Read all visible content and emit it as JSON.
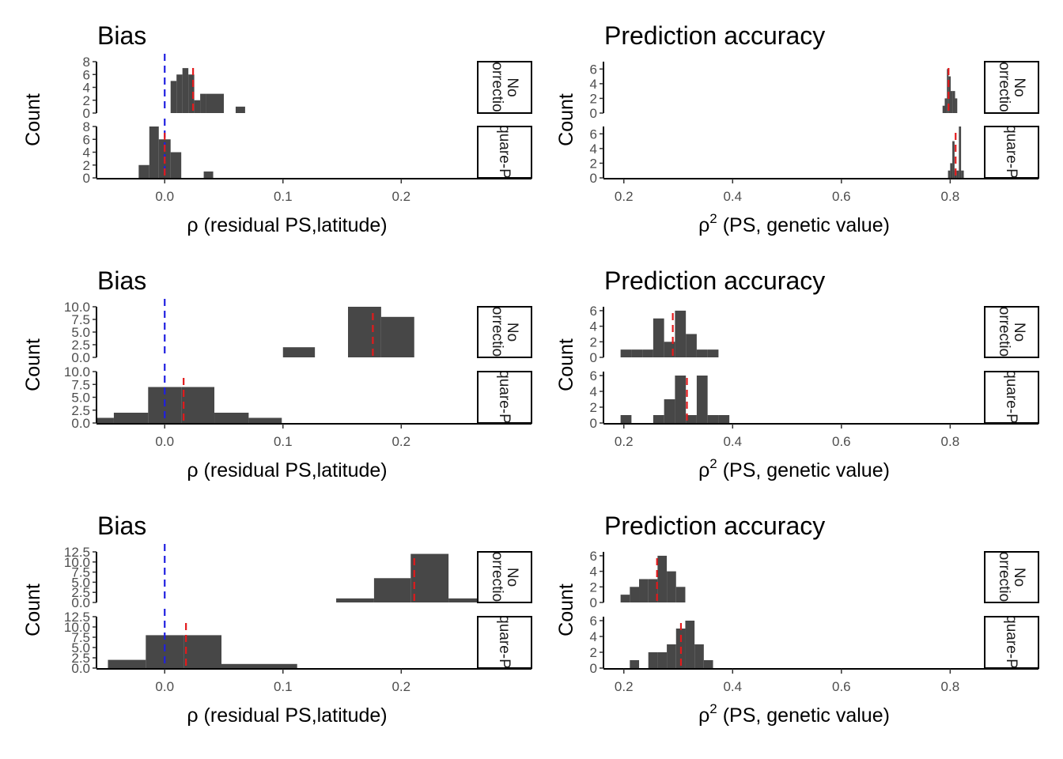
{
  "colors": {
    "bar": "#474747",
    "mean_line": "#e31a1c",
    "zero_line": "#1f1fe0",
    "strip_border": "#000000"
  },
  "chart_data": [
    {
      "type": "histogram",
      "row": 0,
      "col": 0,
      "title": "Bias",
      "ylabel": "Count",
      "xlabel_prefix": "ρ",
      "xlabel_sup": "",
      "xlabel_rest": " (residual PS,latitude)",
      "xlim": [
        -0.057,
        0.264
      ],
      "xticks": [
        0.0,
        0.1,
        0.2
      ],
      "xtick_labels": [
        "0.0",
        "0.1",
        "0.2"
      ],
      "zero_line": 0.0,
      "facets": [
        {
          "label": "No correction",
          "ylim": [
            0,
            8
          ],
          "yticks": [
            0,
            2,
            4,
            6,
            8
          ],
          "ytick_labels": [
            "0",
            "2",
            "4",
            "6",
            "8"
          ],
          "mean": 0.024,
          "bars": [
            [
              0.005,
              0.01,
              5
            ],
            [
              0.01,
              0.015,
              6
            ],
            [
              0.015,
              0.02,
              7
            ],
            [
              0.02,
              0.025,
              6
            ],
            [
              0.025,
              0.03,
              2
            ],
            [
              0.03,
              0.035,
              3
            ],
            [
              0.035,
              0.05,
              3
            ],
            [
              0.06,
              0.068,
              1
            ]
          ]
        },
        {
          "label": "Square-PC",
          "ylim": [
            0,
            8
          ],
          "yticks": [
            0,
            2,
            4,
            6,
            8
          ],
          "ytick_labels": [
            "0",
            "2",
            "4",
            "6",
            "8"
          ],
          "mean": 0.0,
          "bars": [
            [
              -0.022,
              -0.013,
              2
            ],
            [
              -0.013,
              -0.005,
              8
            ],
            [
              -0.005,
              0.005,
              6
            ],
            [
              0.005,
              0.014,
              4
            ],
            [
              0.033,
              0.041,
              1
            ]
          ]
        }
      ]
    },
    {
      "type": "histogram",
      "row": 0,
      "col": 1,
      "title": "Prediction accuracy",
      "ylabel": "Count",
      "xlabel_prefix": "ρ",
      "xlabel_sup": "2",
      "xlabel_rest": " (PS, genetic value)",
      "xlim": [
        0.164,
        0.862
      ],
      "xticks": [
        0.2,
        0.4,
        0.6,
        0.8
      ],
      "xtick_labels": [
        "0.2",
        "0.4",
        "0.6",
        "0.8"
      ],
      "zero_line": null,
      "facets": [
        {
          "label": "No correction",
          "ylim": [
            0,
            7
          ],
          "yticks": [
            0,
            2,
            4,
            6
          ],
          "ytick_labels": [
            "0",
            "2",
            "4",
            "6"
          ],
          "mean": 0.797,
          "bars": [
            [
              0.786,
              0.79,
              1
            ],
            [
              0.79,
              0.794,
              2
            ],
            [
              0.794,
              0.797,
              6
            ],
            [
              0.797,
              0.801,
              5
            ],
            [
              0.801,
              0.805,
              3
            ],
            [
              0.805,
              0.809,
              3
            ],
            [
              0.809,
              0.813,
              2
            ]
          ]
        },
        {
          "label": "Square-PC",
          "ylim": [
            0,
            7
          ],
          "yticks": [
            0,
            2,
            4,
            6
          ],
          "ytick_labels": [
            "0",
            "2",
            "4",
            "6"
          ],
          "mean": 0.81,
          "bars": [
            [
              0.796,
              0.8,
              1
            ],
            [
              0.8,
              0.804,
              2
            ],
            [
              0.804,
              0.808,
              5
            ],
            [
              0.808,
              0.812,
              1
            ],
            [
              0.812,
              0.816,
              1
            ],
            [
              0.816,
              0.82,
              7
            ],
            [
              0.82,
              0.825,
              1
            ]
          ]
        }
      ]
    },
    {
      "type": "histogram",
      "row": 1,
      "col": 0,
      "title": "Bias",
      "ylabel": "Count",
      "xlabel_prefix": "ρ",
      "xlabel_sup": "",
      "xlabel_rest": " (residual PS,latitude)",
      "xlim": [
        -0.057,
        0.264
      ],
      "xticks": [
        0.0,
        0.1,
        0.2
      ],
      "xtick_labels": [
        "0.0",
        "0.1",
        "0.2"
      ],
      "zero_line": 0.0,
      "facets": [
        {
          "label": "No correction",
          "ylim": [
            0,
            10
          ],
          "yticks": [
            0,
            2.5,
            5,
            7.5,
            10
          ],
          "ytick_labels": [
            "0.0",
            "2.5",
            "5.0",
            "7.5",
            "10.0"
          ],
          "mean": 0.176,
          "bars": [
            [
              0.1,
              0.127,
              2
            ],
            [
              0.155,
              0.183,
              10
            ],
            [
              0.183,
              0.211,
              8
            ]
          ]
        },
        {
          "label": "Square-PC",
          "ylim": [
            0,
            10
          ],
          "yticks": [
            0,
            2.5,
            5,
            7.5,
            10
          ],
          "ytick_labels": [
            "0.0",
            "2.5",
            "5.0",
            "7.5",
            "10.0"
          ],
          "mean": 0.016,
          "bars": [
            [
              -0.057,
              -0.043,
              1
            ],
            [
              -0.043,
              -0.014,
              2
            ],
            [
              -0.014,
              0.014,
              7
            ],
            [
              0.014,
              0.042,
              7
            ],
            [
              0.042,
              0.071,
              2
            ],
            [
              0.071,
              0.099,
              1
            ]
          ]
        }
      ]
    },
    {
      "type": "histogram",
      "row": 1,
      "col": 1,
      "title": "Prediction accuracy",
      "ylabel": "Count",
      "xlabel_prefix": "ρ",
      "xlabel_sup": "2",
      "xlabel_rest": " (PS, genetic value)",
      "xlim": [
        0.164,
        0.862
      ],
      "xticks": [
        0.2,
        0.4,
        0.6,
        0.8
      ],
      "xtick_labels": [
        "0.2",
        "0.4",
        "0.6",
        "0.8"
      ],
      "zero_line": null,
      "facets": [
        {
          "label": "No correction",
          "ylim": [
            0,
            6.5
          ],
          "yticks": [
            0,
            2,
            4,
            6
          ],
          "ytick_labels": [
            "0",
            "2",
            "4",
            "6"
          ],
          "mean": 0.29,
          "bars": [
            [
              0.194,
              0.214,
              1
            ],
            [
              0.214,
              0.234,
              1
            ],
            [
              0.234,
              0.254,
              1
            ],
            [
              0.254,
              0.274,
              5
            ],
            [
              0.274,
              0.294,
              2
            ],
            [
              0.294,
              0.314,
              6
            ],
            [
              0.314,
              0.334,
              3
            ],
            [
              0.334,
              0.354,
              1
            ],
            [
              0.354,
              0.374,
              1
            ]
          ]
        },
        {
          "label": "Square-PC",
          "ylim": [
            0,
            6.5
          ],
          "yticks": [
            0,
            2,
            4,
            6
          ],
          "ytick_labels": [
            "0",
            "2",
            "4",
            "6"
          ],
          "mean": 0.316,
          "bars": [
            [
              0.194,
              0.214,
              1
            ],
            [
              0.254,
              0.274,
              1
            ],
            [
              0.274,
              0.294,
              3
            ],
            [
              0.294,
              0.314,
              6
            ],
            [
              0.314,
              0.334,
              1
            ],
            [
              0.334,
              0.354,
              6
            ],
            [
              0.354,
              0.374,
              1
            ],
            [
              0.374,
              0.394,
              1
            ]
          ]
        }
      ]
    },
    {
      "type": "histogram",
      "row": 2,
      "col": 0,
      "title": "Bias",
      "ylabel": "Count",
      "xlabel_prefix": "ρ",
      "xlabel_sup": "",
      "xlabel_rest": " (residual PS,latitude)",
      "xlim": [
        -0.057,
        0.264
      ],
      "xticks": [
        0.0,
        0.1,
        0.2
      ],
      "xtick_labels": [
        "0.0",
        "0.1",
        "0.2"
      ],
      "zero_line": 0.0,
      "facets": [
        {
          "label": "No correction",
          "ylim": [
            0,
            12.5
          ],
          "yticks": [
            0,
            2.5,
            5,
            7.5,
            10,
            12.5
          ],
          "ytick_labels": [
            "0.0",
            "2.5",
            "5.0",
            "7.5",
            "10.0",
            "12.5"
          ],
          "mean": 0.211,
          "bars": [
            [
              0.145,
              0.177,
              1
            ],
            [
              0.177,
              0.208,
              6
            ],
            [
              0.208,
              0.24,
              12
            ],
            [
              0.24,
              0.264,
              1
            ]
          ]
        },
        {
          "label": "Square-PC",
          "ylim": [
            0,
            12.5
          ],
          "yticks": [
            0,
            2.5,
            5,
            7.5,
            10,
            12.5
          ],
          "ytick_labels": [
            "0.0",
            "2.5",
            "5.0",
            "7.5",
            "10.0",
            "12.5"
          ],
          "mean": 0.018,
          "bars": [
            [
              -0.048,
              -0.016,
              2
            ],
            [
              -0.016,
              0.016,
              8
            ],
            [
              0.016,
              0.048,
              8
            ],
            [
              0.048,
              0.112,
              1
            ]
          ]
        }
      ]
    },
    {
      "type": "histogram",
      "row": 2,
      "col": 1,
      "title": "Prediction accuracy",
      "ylabel": "Count",
      "xlabel_prefix": "ρ",
      "xlabel_sup": "2",
      "xlabel_rest": " (PS, genetic value)",
      "xlim": [
        0.164,
        0.862
      ],
      "xticks": [
        0.2,
        0.4,
        0.6,
        0.8
      ],
      "xtick_labels": [
        "0.2",
        "0.4",
        "0.6",
        "0.8"
      ],
      "zero_line": null,
      "facets": [
        {
          "label": "No correction",
          "ylim": [
            0,
            6.5
          ],
          "yticks": [
            0,
            2,
            4,
            6
          ],
          "ytick_labels": [
            "0",
            "2",
            "4",
            "6"
          ],
          "mean": 0.261,
          "bars": [
            [
              0.194,
              0.211,
              1
            ],
            [
              0.211,
              0.228,
              2
            ],
            [
              0.228,
              0.245,
              3
            ],
            [
              0.245,
              0.262,
              3
            ],
            [
              0.262,
              0.279,
              6
            ],
            [
              0.279,
              0.296,
              4
            ],
            [
              0.296,
              0.313,
              2
            ]
          ]
        },
        {
          "label": "Square-PC",
          "ylim": [
            0,
            6.5
          ],
          "yticks": [
            0,
            2,
            4,
            6
          ],
          "ytick_labels": [
            "0",
            "2",
            "4",
            "6"
          ],
          "mean": 0.305,
          "bars": [
            [
              0.211,
              0.228,
              1
            ],
            [
              0.245,
              0.262,
              2
            ],
            [
              0.262,
              0.279,
              2
            ],
            [
              0.279,
              0.296,
              3
            ],
            [
              0.296,
              0.313,
              5
            ],
            [
              0.313,
              0.33,
              6
            ],
            [
              0.33,
              0.347,
              3
            ],
            [
              0.347,
              0.364,
              1
            ]
          ]
        }
      ]
    }
  ]
}
